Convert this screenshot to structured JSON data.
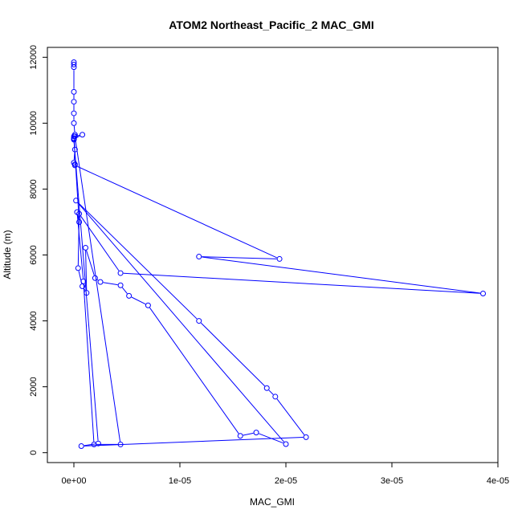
{
  "chart_data": {
    "type": "line",
    "title": "ATOM2 Northeast_Pacific_2 MAC_GMI",
    "xlabel": "MAC_GMI",
    "ylabel": "Altitude (m)",
    "xlim": [
      -2.5e-06,
      4e-05
    ],
    "ylim": [
      -300,
      12300
    ],
    "xticks": [
      0,
      1e-05,
      2e-05,
      3e-05,
      4e-05
    ],
    "xtick_labels": [
      "0e+00",
      "1e-05",
      "2e-05",
      "3e-05",
      "4e-05"
    ],
    "yticks": [
      0,
      2000,
      4000,
      6000,
      8000,
      10000,
      12000
    ],
    "ytick_labels": [
      "0",
      "2000",
      "4000",
      "6000",
      "8000",
      "10000",
      "12000"
    ],
    "grid": false,
    "series_color": "#0000ff",
    "series": [
      {
        "x": [
          0.0,
          0.0,
          0.0,
          0.0,
          0.0,
          0.0,
          0.0,
          1e-07,
          0.0,
          8e-07,
          1e-08,
          1e-07,
          0.0,
          1e-07,
          1e-07,
          1.94e-05,
          1.18e-05,
          3.86e-05,
          4.4e-06,
          5e-07,
          4e-07,
          8e-07,
          1.2e-06,
          1.1e-06,
          2e-06,
          2.5e-06,
          4.4e-06,
          5.2e-06,
          7e-06,
          1.57e-05,
          1.72e-05,
          2e-05,
          2e-07,
          1.18e-05,
          1.82e-05,
          1.9e-05,
          2.19e-05,
          7e-07,
          2.3e-06,
          0.0,
          0.0,
          5e-07,
          3e-07,
          9e-07,
          1.9e-06,
          4.4e-06,
          1e-07
        ],
        "y": [
          11850,
          11780,
          11700,
          10950,
          10650,
          10300,
          10000,
          9650,
          9520,
          9650,
          9600,
          9200,
          8800,
          8750,
          8720,
          5880,
          5950,
          4830,
          5450,
          7250,
          5600,
          5050,
          4850,
          6220,
          5300,
          5180,
          5080,
          4760,
          4470,
          510,
          610,
          260,
          7650,
          4000,
          1960,
          1700,
          470,
          200,
          280,
          9500,
          9550,
          7000,
          7300,
          5200,
          250,
          250,
          9600
        ]
      }
    ]
  }
}
